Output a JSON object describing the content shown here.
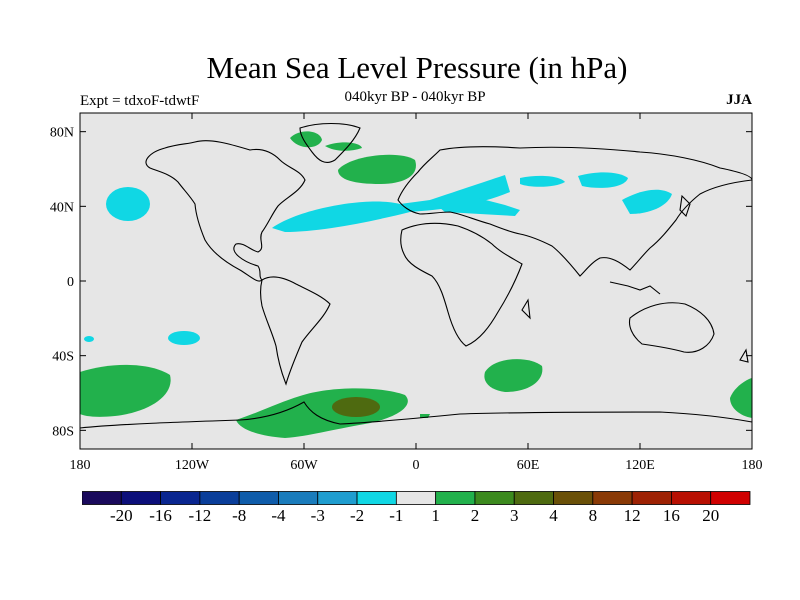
{
  "title": "Mean Sea Level Pressure (in hPa)",
  "subtitle": "040kyr BP - 040kyr BP",
  "expt_label": "Expt = tdxoF-tdwtF",
  "season": "JJA",
  "map": {
    "projection": "cylindrical-equidistant",
    "lon_range": [
      -180,
      180
    ],
    "lat_range": [
      -90,
      90
    ],
    "background_color": "#e6e6e6",
    "y_ticks": [
      {
        "lat": 80,
        "label": "80N"
      },
      {
        "lat": 40,
        "label": "40N"
      },
      {
        "lat": 0,
        "label": "0"
      },
      {
        "lat": -40,
        "label": "40S"
      },
      {
        "lat": -80,
        "label": "80S"
      }
    ],
    "x_ticks": [
      {
        "lon": -180,
        "label": "180"
      },
      {
        "lon": -120,
        "label": "120W"
      },
      {
        "lon": -60,
        "label": "60W"
      },
      {
        "lon": 0,
        "label": "0"
      },
      {
        "lon": 60,
        "label": "60E"
      },
      {
        "lon": 120,
        "label": "120E"
      },
      {
        "lon": 180,
        "label": "180"
      }
    ]
  },
  "colorbar": {
    "colors": [
      "#1a0a5c",
      "#0c0f7a",
      "#0a2690",
      "#0a3e9a",
      "#0f5caa",
      "#1a7cbc",
      "#1f9dcf",
      "#10d7e4",
      "#e6e6e6",
      "#22b14c",
      "#3c8a1e",
      "#4e6a10",
      "#6a5008",
      "#8a3a06",
      "#9e2204",
      "#b81002",
      "#d00000"
    ],
    "labels": [
      "-20",
      "-16",
      "-12",
      "-8",
      "-4",
      "-3",
      "-2",
      "-1",
      "1",
      "2",
      "3",
      "4",
      "8",
      "12",
      "16",
      "20"
    ]
  }
}
